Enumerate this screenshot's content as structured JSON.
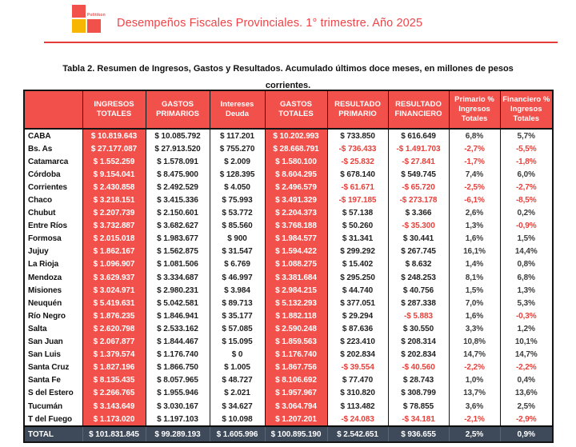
{
  "page": {
    "brand": "Politikon",
    "title": "Desempeños Fiscales Provinciales. 1° trimestre. Año 2025",
    "table_caption_line1": "Tabla 2. Resumen de Ingresos, Gastos y Resultados. Acumulado últimos doce meses, en millones de pesos",
    "table_caption_line2": "corrientes."
  },
  "table": {
    "columns": [
      "",
      "INGRESOS TOTALES",
      "GASTOS PRIMARIOS",
      "Intereses Deuda",
      "GASTOS TOTALES",
      "RESULTADO PRIMARIO",
      "RESULTADO FINANCIERO",
      "Primario % Ingresos Totales",
      "Financiero % Ingresos Totales"
    ],
    "rows": [
      [
        "CABA",
        "$ 10.819.643",
        "$ 10.085.792",
        "$ 117.201",
        "$ 10.202.993",
        "$ 733.850",
        "$ 616.649",
        "6,8%",
        "5,7%"
      ],
      [
        "Bs. As",
        "$ 27.177.087",
        "$ 27.913.520",
        "$ 755.270",
        "$ 28.668.791",
        "-$ 736.433",
        "-$ 1.491.703",
        "-2,7%",
        "-5,5%"
      ],
      [
        "Catamarca",
        "$ 1.552.259",
        "$ 1.578.091",
        "$ 2.009",
        "$ 1.580.100",
        "-$ 25.832",
        "-$ 27.841",
        "-1,7%",
        "-1,8%"
      ],
      [
        "Córdoba",
        "$ 9.154.041",
        "$ 8.475.900",
        "$ 128.395",
        "$ 8.604.295",
        "$ 678.140",
        "$ 549.745",
        "7,4%",
        "6,0%"
      ],
      [
        "Corrientes",
        "$ 2.430.858",
        "$ 2.492.529",
        "$ 4.050",
        "$ 2.496.579",
        "-$ 61.671",
        "-$ 65.720",
        "-2,5%",
        "-2,7%"
      ],
      [
        "Chaco",
        "$ 3.218.151",
        "$ 3.415.336",
        "$ 75.993",
        "$ 3.491.329",
        "-$ 197.185",
        "-$ 273.178",
        "-6,1%",
        "-8,5%"
      ],
      [
        "Chubut",
        "$ 2.207.739",
        "$ 2.150.601",
        "$ 53.772",
        "$ 2.204.373",
        "$ 57.138",
        "$ 3.366",
        "2,6%",
        "0,2%"
      ],
      [
        "Entre Ríos",
        "$ 3.732.887",
        "$ 3.682.627",
        "$ 85.560",
        "$ 3.768.188",
        "$ 50.260",
        "-$ 35.300",
        "1,3%",
        "-0,9%"
      ],
      [
        "Formosa",
        "$ 2.015.018",
        "$ 1.983.677",
        "$ 900",
        "$ 1.984.577",
        "$ 31.341",
        "$ 30.441",
        "1,6%",
        "1,5%"
      ],
      [
        "Jujuy",
        "$ 1.862.167",
        "$ 1.562.875",
        "$ 31.547",
        "$ 1.594.422",
        "$ 299.292",
        "$ 267.745",
        "16,1%",
        "14,4%"
      ],
      [
        "La Rioja",
        "$ 1.096.907",
        "$ 1.081.506",
        "$ 6.769",
        "$ 1.088.275",
        "$ 15.402",
        "$ 8.632",
        "1,4%",
        "0,8%"
      ],
      [
        "Mendoza",
        "$ 3.629.937",
        "$ 3.334.687",
        "$ 46.997",
        "$ 3.381.684",
        "$ 295.250",
        "$ 248.253",
        "8,1%",
        "6,8%"
      ],
      [
        "Misiones",
        "$ 3.024.971",
        "$ 2.980.231",
        "$ 3.984",
        "$ 2.984.215",
        "$ 44.740",
        "$ 40.756",
        "1,5%",
        "1,3%"
      ],
      [
        "Neuquén",
        "$ 5.419.631",
        "$ 5.042.581",
        "$ 89.713",
        "$ 5.132.293",
        "$ 377.051",
        "$ 287.338",
        "7,0%",
        "5,3%"
      ],
      [
        "Río Negro",
        "$ 1.876.235",
        "$ 1.846.941",
        "$ 35.177",
        "$ 1.882.118",
        "$ 29.294",
        "-$ 5.883",
        "1,6%",
        "-0,3%"
      ],
      [
        "Salta",
        "$ 2.620.798",
        "$ 2.533.162",
        "$ 57.085",
        "$ 2.590.248",
        "$ 87.636",
        "$ 30.550",
        "3,3%",
        "1,2%"
      ],
      [
        "San Juan",
        "$ 2.067.877",
        "$ 1.844.467",
        "$ 15.095",
        "$ 1.859.563",
        "$ 223.410",
        "$ 208.314",
        "10,8%",
        "10,1%"
      ],
      [
        "San Luis",
        "$ 1.379.574",
        "$ 1.176.740",
        "$ 0",
        "$ 1.176.740",
        "$ 202.834",
        "$ 202.834",
        "14,7%",
        "14,7%"
      ],
      [
        "Santa Cruz",
        "$ 1.827.196",
        "$ 1.866.750",
        "$ 1.005",
        "$ 1.867.756",
        "-$ 39.554",
        "-$ 40.560",
        "-2,2%",
        "-2,2%"
      ],
      [
        "Santa Fe",
        "$ 8.135.435",
        "$ 8.057.965",
        "$ 48.727",
        "$ 8.106.692",
        "$ 77.470",
        "$ 28.743",
        "1,0%",
        "0,4%"
      ],
      [
        "S del Estero",
        "$ 2.266.765",
        "$ 1.955.946",
        "$ 2.021",
        "$ 1.957.967",
        "$ 310.820",
        "$ 308.799",
        "13,7%",
        "13,6%"
      ],
      [
        "Tucumán",
        "$ 3.143.649",
        "$ 3.030.167",
        "$ 34.627",
        "$ 3.064.794",
        "$ 113.482",
        "$ 78.855",
        "3,6%",
        "2,5%"
      ],
      [
        "T del Fuego",
        "$ 1.173.020",
        "$ 1.197.103",
        "$ 10.098",
        "$ 1.207.201",
        "-$ 24.083",
        "-$ 34.181",
        "-2,1%",
        "-2,9%"
      ]
    ],
    "total_row": [
      "TOTAL",
      "$ 101.831.845",
      "$ 99.289.193",
      "$ 1.605.996",
      "$ 100.895.190",
      "$ 2.542.651",
      "$ 936.655",
      "2,5%",
      "0,9%"
    ]
  },
  "colors": {
    "accent_red": "#F2504B",
    "negative_red": "#E8403A",
    "brand_yellow": "#F7B602",
    "total_row_bg": "#3E4A5A",
    "border_black": "#141414"
  }
}
